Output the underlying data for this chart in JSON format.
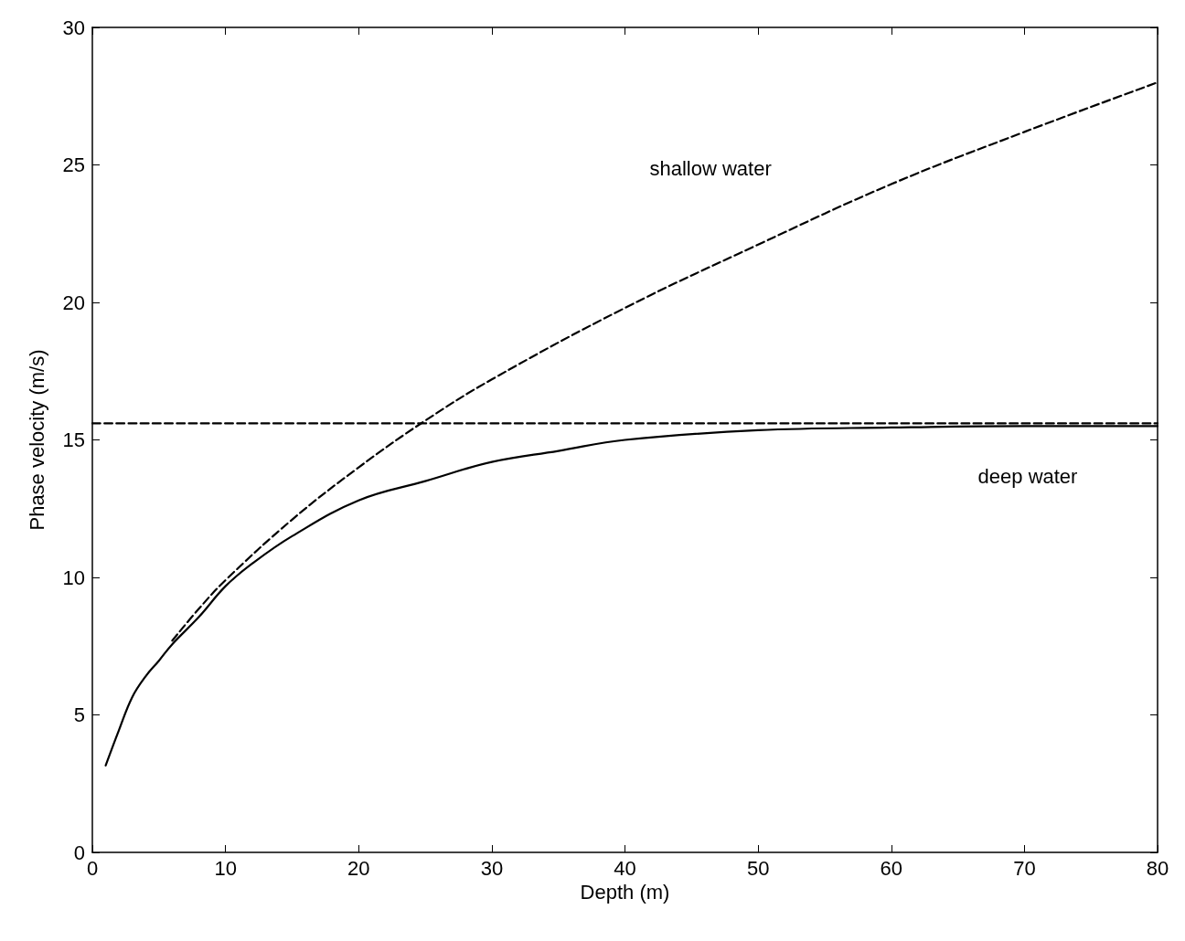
{
  "chart_data": {
    "type": "line",
    "xlabel": "Depth (m)",
    "ylabel": "Phase velocity (m/s)",
    "xlim": [
      0,
      80
    ],
    "xticks": [
      0,
      10,
      20,
      30,
      40,
      50,
      60,
      70,
      80
    ],
    "ylim": [
      0,
      30
    ],
    "yticks": [
      0,
      5,
      10,
      15,
      20,
      25,
      30
    ],
    "grid": false,
    "marker": "none",
    "series": [
      {
        "color": "#000000",
        "line_style": "solid",
        "x": [
          1,
          2,
          3,
          4,
          5,
          6,
          8,
          10,
          12,
          15,
          20,
          25,
          30,
          35,
          40,
          50,
          60,
          70,
          80
        ],
        "values": [
          3.16,
          4.45,
          5.65,
          6.4,
          6.97,
          7.57,
          8.56,
          9.68,
          10.5,
          11.5,
          12.8,
          13.5,
          14.2,
          14.6,
          15.0,
          15.35,
          15.45,
          15.5,
          15.5
        ]
      },
      {
        "name": "shallow water",
        "color": "#000000",
        "line_style": "dashed",
        "x": [
          6,
          8,
          10,
          15,
          20,
          25,
          30,
          40,
          50,
          60,
          70,
          80
        ],
        "values": [
          7.7,
          8.86,
          9.9,
          12.1,
          14.0,
          15.7,
          17.2,
          19.8,
          22.1,
          24.3,
          26.2,
          28.0
        ]
      },
      {
        "name": "deep water",
        "color": "#000000",
        "line_style": "dashed",
        "x": [
          0,
          80
        ],
        "values": [
          15.6,
          15.6
        ]
      }
    ]
  }
}
